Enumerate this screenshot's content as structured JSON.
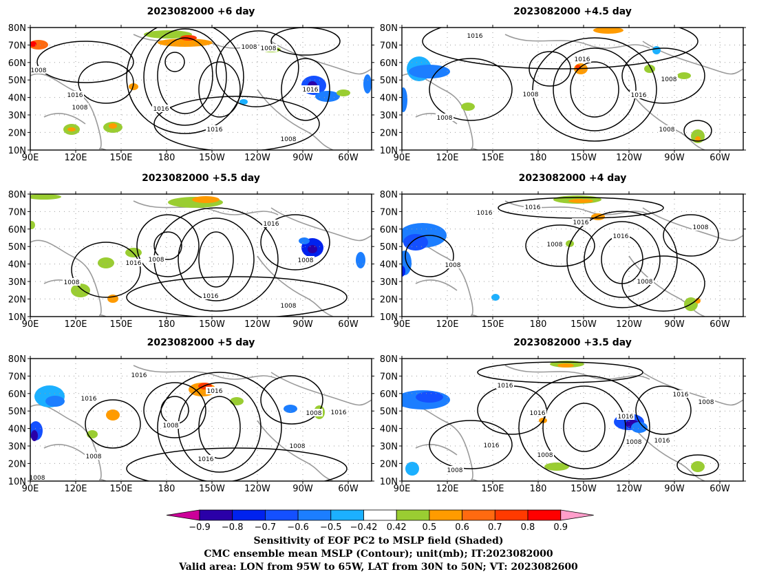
{
  "panels": [
    {
      "title": "2023082000  +6 day",
      "labels": [
        "1008",
        "1008",
        "1008",
        "1016",
        "1016",
        "1008",
        "1016",
        "1016",
        "1008"
      ]
    },
    {
      "title": "2023082000  +4.5 day",
      "labels": [
        "1016",
        "1016",
        "1008",
        "1016",
        "1008",
        "1008",
        "1008"
      ]
    },
    {
      "title": "2023082000  +5.5 day",
      "labels": [
        "1016",
        "1008",
        "1016",
        "1008",
        "1008",
        "1016",
        "1008"
      ]
    },
    {
      "title": "2023082000  +4 day",
      "labels": [
        "1016",
        "1016",
        "1016",
        "1008",
        "1016",
        "1008",
        "1008",
        "1008"
      ]
    },
    {
      "title": "2023082000  +5 day",
      "labels": [
        "1016",
        "1016",
        "1016",
        "1008",
        "1008",
        "1008",
        "1016",
        "1008",
        "1016",
        "1008"
      ]
    },
    {
      "title": "2023082000  +3.5 day",
      "labels": [
        "1016",
        "1016",
        "1008",
        "1016",
        "1016",
        "1016",
        "1016",
        "1008",
        "1008",
        "1008"
      ]
    }
  ],
  "axes": {
    "lat_ticks": [
      "80N",
      "70N",
      "60N",
      "50N",
      "40N",
      "30N",
      "20N",
      "10N"
    ],
    "lon_ticks": [
      "90E",
      "120E",
      "150E",
      "180",
      "150W",
      "120W",
      "90W",
      "60W"
    ]
  },
  "colorbar": {
    "ticks": [
      "−0.9",
      "−0.8",
      "−0.7",
      "−0.6",
      "−0.5",
      "−0.42",
      "0.42",
      "0.5",
      "0.6",
      "0.7",
      "0.8",
      "0.9"
    ],
    "colors": [
      "#2a00a8",
      "#0022ee",
      "#1450ff",
      "#1c7eff",
      "#1cb0ff",
      "#ffffff",
      "#9acd32",
      "#ff9b00",
      "#ff6a10",
      "#ff3a00",
      "#ff0000"
    ],
    "low_end_color": "#cc0099",
    "high_end_color": "#ff9ecb"
  },
  "caption": {
    "line1": "Sensitivity of EOF PC2 to MSLP field (Shaded)",
    "line2": "CMC ensemble mean MSLP (Contour); unit(mb); IT:2023082000",
    "line3": "Valid area: LON from 95W to 65W, LAT from 30N to 50N; VT: 2023082600"
  }
}
